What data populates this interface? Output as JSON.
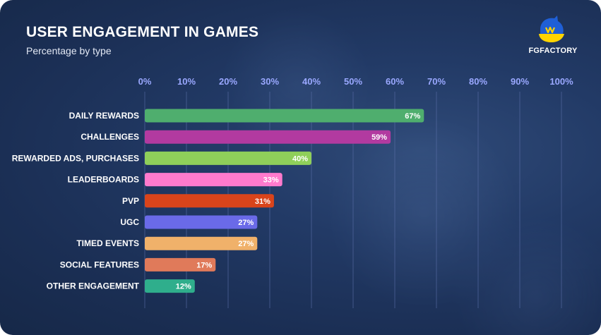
{
  "title": "USER ENGAGEMENT IN GAMES",
  "subtitle": "Percentage by type",
  "brand": {
    "name": "FGFACTORY",
    "colors": {
      "blue": "#1f5fd6",
      "yellow": "#ffd400"
    }
  },
  "chart_data": {
    "type": "bar",
    "orientation": "horizontal",
    "xlim": [
      0,
      100
    ],
    "x_ticks": [
      0,
      10,
      20,
      30,
      40,
      50,
      60,
      70,
      80,
      90,
      100
    ],
    "tick_suffix": "%",
    "tick_position": "top",
    "grid": true,
    "categories": [
      "DAILY REWARDS",
      "CHALLENGES",
      "REWARDED ADS, PURCHASES",
      "LEADERBOARDS",
      "PVP",
      "UGC",
      "TIMED EVENTS",
      "SOCIAL FEATURES",
      "OTHER ENGAGEMENT"
    ],
    "values": [
      67,
      59,
      40,
      33,
      31,
      27,
      27,
      17,
      12
    ],
    "value_labels": [
      "67%",
      "59%",
      "40%",
      "33%",
      "31%",
      "27%",
      "27%",
      "17%",
      "12%"
    ],
    "colors": [
      "#4fae6e",
      "#b23aa0",
      "#8fcf5a",
      "#ff7acd",
      "#d9441b",
      "#6a6ae8",
      "#f0b16a",
      "#e07a5a",
      "#2fae8c"
    ],
    "xlabel": "",
    "ylabel": ""
  }
}
